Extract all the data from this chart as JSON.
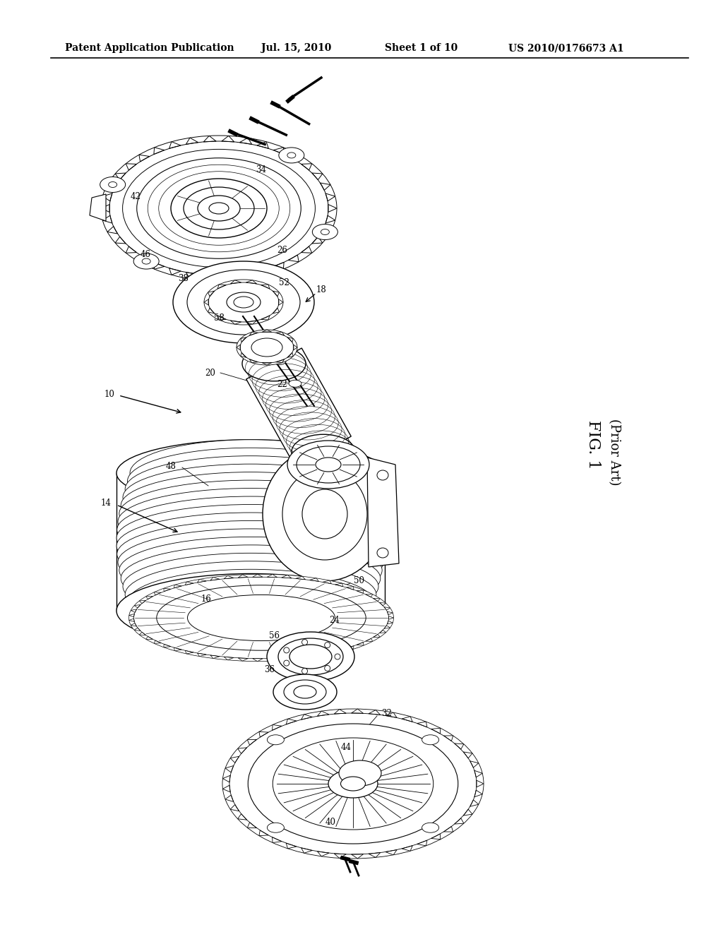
{
  "background_color": "#ffffff",
  "header_text": "Patent Application Publication",
  "header_date": "Jul. 15, 2010",
  "header_sheet": "Sheet 1 of 10",
  "header_patent": "US 2010/0176673 A1",
  "fig_label": "FIG. 1",
  "fig_sublabel": "(Prior Art)",
  "font_size_header": 10,
  "font_size_label": 8.5,
  "font_size_fig": 14,
  "line_color": "#000000",
  "bg": "#ffffff"
}
